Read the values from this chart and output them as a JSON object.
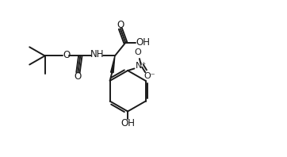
{
  "bg_color": "#ffffff",
  "line_color": "#1a1a1a",
  "line_width": 1.4,
  "font_size": 8.5,
  "figsize": [
    3.62,
    1.98
  ],
  "dpi": 100,
  "xlim": [
    0,
    10
  ],
  "ylim": [
    0,
    5.5
  ]
}
